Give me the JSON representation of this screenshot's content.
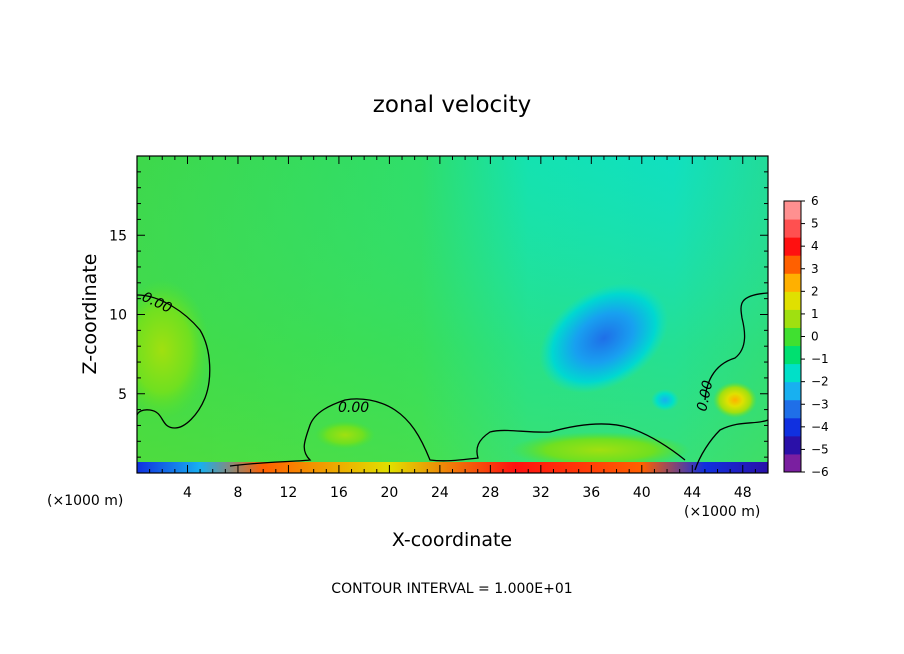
{
  "chart_data": {
    "type": "heatmap",
    "title": "zonal velocity",
    "xlabel": "X-coordinate",
    "ylabel": "Z-coordinate",
    "x_unit_left": "(×1000 m)",
    "x_unit_right": "(×1000 m)",
    "xlim": [
      0,
      50
    ],
    "ylim": [
      0,
      20
    ],
    "x_ticks": [
      4,
      8,
      12,
      16,
      20,
      24,
      28,
      32,
      36,
      40,
      44,
      48
    ],
    "y_ticks": [
      5,
      10,
      15
    ],
    "colorbar": {
      "min": -6,
      "max": 6,
      "ticks": [
        6,
        5,
        4,
        3,
        2,
        1,
        0,
        -1,
        -2,
        -3,
        -4,
        -5,
        -6
      ],
      "colors": [
        "#7a1fa0",
        "#2a10a8",
        "#1030e0",
        "#1f6fe8",
        "#18b0f0",
        "#00e0c8",
        "#00e070",
        "#40e030",
        "#a0e010",
        "#e0e000",
        "#ffb000",
        "#ff6000",
        "#ff1010",
        "#ff5050",
        "#ff9090"
      ]
    },
    "contour_level_label": "0.00",
    "contour_interval": "CONTOUR INTERVAL = 1.000E+01",
    "features": [
      {
        "kind": "min",
        "x": 37,
        "z": 9,
        "value": -3
      },
      {
        "kind": "max",
        "x": 2,
        "z": 8,
        "value": 1
      },
      {
        "kind": "max",
        "x": 47,
        "z": 4.5,
        "value": 2
      },
      {
        "kind": "min",
        "x": 43.5,
        "z": 4.5,
        "value": -2
      },
      {
        "kind": "surface-band",
        "x_range": [
          0,
          50
        ],
        "z_range": [
          0,
          0.5
        ],
        "value_range": [
          -6,
          6
        ]
      }
    ],
    "grid": false
  }
}
